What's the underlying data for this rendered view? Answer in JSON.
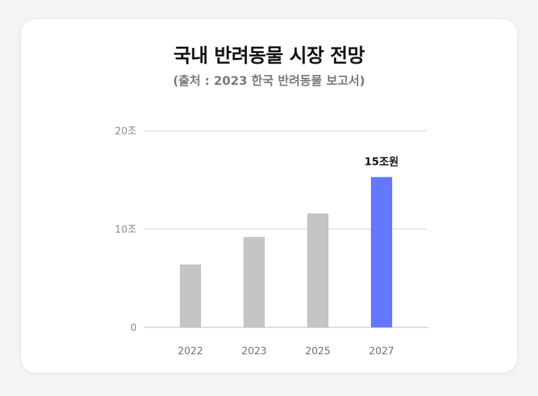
{
  "title": "국내 반려동물 시장 전망",
  "subtitle": "(출처 : 2023 한국 반려동물 보고서)",
  "colors": {
    "default_bar": "#c4c4c4",
    "highlight_bar": "#6478ff",
    "grid": "#d0d0d0",
    "baseline": "#bdbdbd"
  },
  "chart_data": {
    "type": "bar",
    "categories": [
      "2022",
      "2023",
      "2025",
      "2027"
    ],
    "values": [
      6.4,
      9.2,
      11.6,
      15.3
    ],
    "highlight_index": 3,
    "data_labels": [
      "",
      "",
      "",
      "15조원"
    ],
    "yticks": [
      {
        "value": 0,
        "label": "0"
      },
      {
        "value": 10,
        "label": "10조"
      },
      {
        "value": 20,
        "label": "20조"
      }
    ],
    "ylim": [
      0,
      20
    ],
    "grid": true,
    "legend": "none",
    "xlabel": "",
    "ylabel": ""
  }
}
